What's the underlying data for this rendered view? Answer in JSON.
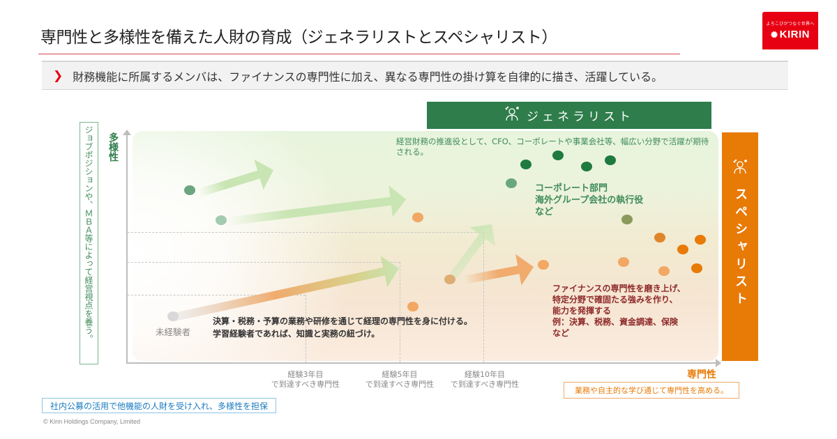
{
  "header": {
    "title": "専門性と多様性を備えた人財の育成（ジェネラリストとスペシャリスト）",
    "logo": {
      "tagline": "よろこびがつなぐ世界へ",
      "brand": "KIRIN",
      "mark": "✺"
    },
    "subheading_marker": "❯",
    "subheading": "財務機能に所属するメンバは、ファイナンスの専門性に加え、異なる専門性の掛け算を自律的に描き、活躍している。"
  },
  "diagram": {
    "y_axis_label": "多様性",
    "y_axis_note": "ジョブポジションや、ＭＢＡ等によって経営視点を養う。",
    "x_axis_label": "専門性",
    "x_axis_note": "業務や自主的な学び通じて専門性を高める。",
    "x_ticks": [
      {
        "line1": "経験3年目",
        "line2": "で到達すべき専門性"
      },
      {
        "line1": "経験5年目",
        "line2": "で到達すべき専門性"
      },
      {
        "line1": "経験10年目",
        "line2": "で到達すべき専門性"
      }
    ],
    "generalist": {
      "label": "ジェネラリスト",
      "icon": "person-icon",
      "note": "経営財務の推進役として、CFO、コーポレートや事業会社等、幅広い分野で活躍が期待される。",
      "roles": [
        "コーポレート部門",
        "海外グループ会社の執行役",
        "など"
      ]
    },
    "specialist": {
      "label": "スペシャリスト",
      "icon": "person-icon",
      "note": [
        "ファイナンスの専門性を磨き上げ、",
        "特定分野で確固たる強みを作り、",
        "能力を発揮する",
        "例：決算、税務、資金調達、保険",
        "など"
      ]
    },
    "novice_label": "未経験者",
    "base_note": [
      "決算・税務・予算の業務や研修を通じて経理の専門性を身に付ける。",
      "学習経験者であれば、知識と実務の紐づけ。"
    ],
    "colors": {
      "generalist": "#2e7d4a",
      "specialist": "#e87a06",
      "dot_green_dark": "#1f7a3f",
      "dot_green_mid": "#6aa67f",
      "dot_green_light": "#a3cbb0",
      "dot_olive": "#8a9a5b",
      "dot_orange": "#e87a06",
      "dot_orange_light": "#f2a763",
      "dot_gray": "#d9d9d9",
      "arrow_green": "#c8e5b3",
      "arrow_orange": "#f0ab6d"
    }
  },
  "footer": {
    "policy_note": "社内公募の活用で他機能の人財を受け入れ、多様性を担保",
    "copyright": "© Kirin Holdings Company, Limited"
  }
}
